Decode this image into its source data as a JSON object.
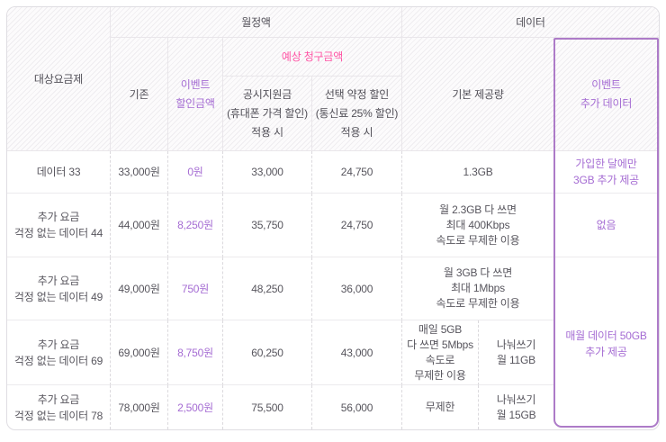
{
  "colors": {
    "accent_purple": "#a56cd3",
    "accent_pink": "#ff55a5",
    "highlight_border": "#ad7bc8"
  },
  "header": {
    "plan": "대상요금제",
    "monthly_group": "월정액",
    "data_group": "데이터",
    "base": "기존",
    "event_discount": [
      "이벤트",
      "할인금액"
    ],
    "expected_billing": "예상 청구금액",
    "subsidy": [
      "공시지원금",
      "(휴대폰 가격 할인)",
      "적용 시"
    ],
    "contract": [
      "선택 약정 할인",
      "(통신료 25% 할인)",
      "적용 시"
    ],
    "allowance": "기본 제공량",
    "event_data": [
      "이벤트",
      "추가 데이터"
    ]
  },
  "rows": [
    {
      "plan": [
        "데이터 33"
      ],
      "base": "33,000원",
      "event_discount": "0원",
      "subsidy": "33,000",
      "contract": "24,750",
      "allowance": [
        "1.3GB"
      ],
      "event_data": [
        "가입한 달에만",
        "3GB 추가 제공"
      ]
    },
    {
      "plan": [
        "추가 요금",
        "걱정 없는 데이터 44"
      ],
      "base": "44,000원",
      "event_discount": "8,250원",
      "subsidy": "35,750",
      "contract": "24,750",
      "allowance": [
        "월 2.3GB 다 쓰면",
        "최대 400Kbps",
        "속도로 무제한 이용"
      ],
      "event_data": [
        "없음"
      ]
    },
    {
      "plan": [
        "추가 요금",
        "걱정 없는 데이터 49"
      ],
      "base": "49,000원",
      "event_discount": "750원",
      "subsidy": "48,250",
      "contract": "36,000",
      "allowance": [
        "월 3GB 다 쓰면",
        "최대 1Mbps",
        "속도로 무제한 이용"
      ]
    },
    {
      "plan": [
        "추가 요금",
        "걱정 없는 데이터 69"
      ],
      "base": "69,000원",
      "event_discount": "8,750원",
      "subsidy": "60,250",
      "contract": "43,000",
      "allowance": [
        "매일 5GB",
        "다 쓰면 5Mbps",
        "속도로",
        "무제한 이용"
      ],
      "share": [
        "나눠쓰기",
        "월 11GB"
      ]
    },
    {
      "plan": [
        "추가 요금",
        "걱정 없는 데이터 78"
      ],
      "base": "78,000원",
      "event_discount": "2,500원",
      "subsidy": "75,500",
      "contract": "56,000",
      "allowance": [
        "무제한"
      ],
      "share": [
        "나눠쓰기",
        "월 15GB"
      ]
    }
  ],
  "merged_event_data": [
    "매월 데이터 50GB",
    "추가 제공"
  ]
}
